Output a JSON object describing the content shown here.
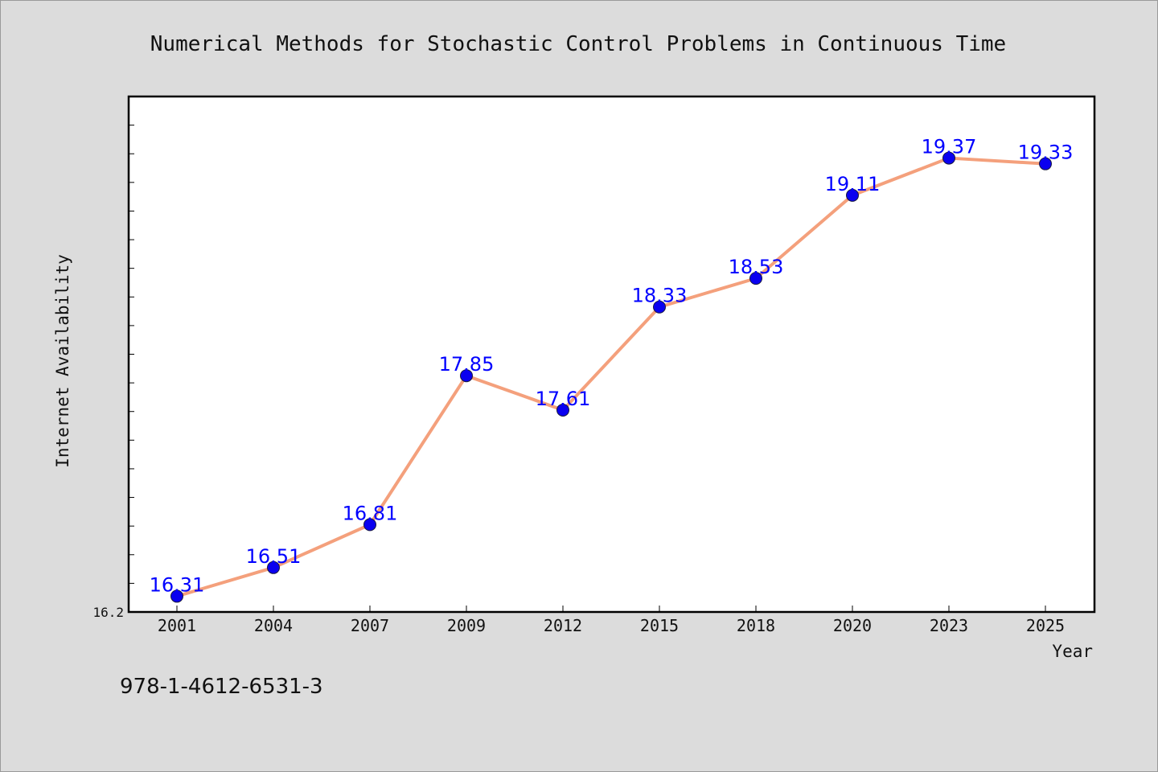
{
  "page": {
    "footer_text": "978-1-4612-6531-3"
  },
  "chart_data": {
    "type": "line",
    "title": "Numerical Methods for Stochastic Control Problems in Continuous Time",
    "xlabel": "Year",
    "ylabel": "Internet Availability",
    "categories": [
      "2001",
      "2004",
      "2007",
      "2009",
      "2012",
      "2015",
      "2018",
      "2020",
      "2023",
      "2025"
    ],
    "series": [
      {
        "values": [
          16.31,
          16.51,
          16.81,
          17.85,
          17.61,
          18.33,
          18.53,
          19.11,
          19.37,
          19.33
        ]
      }
    ],
    "data_labels": [
      "16.31",
      "16.51",
      "16.81",
      "17.85",
      "17.61",
      "18.33",
      "18.53",
      "19.11",
      "19.37",
      "19.33"
    ],
    "ylim": [
      16.2,
      19.8
    ],
    "yticks_labeled": [
      "16.2"
    ],
    "grid": false,
    "legend": "none",
    "colors": {
      "line": "#f4a07c",
      "marker": "#0a00f0",
      "data_label": "#0000ff",
      "plot_background": "#ffffff",
      "page_background": "#dcdcdc"
    }
  }
}
